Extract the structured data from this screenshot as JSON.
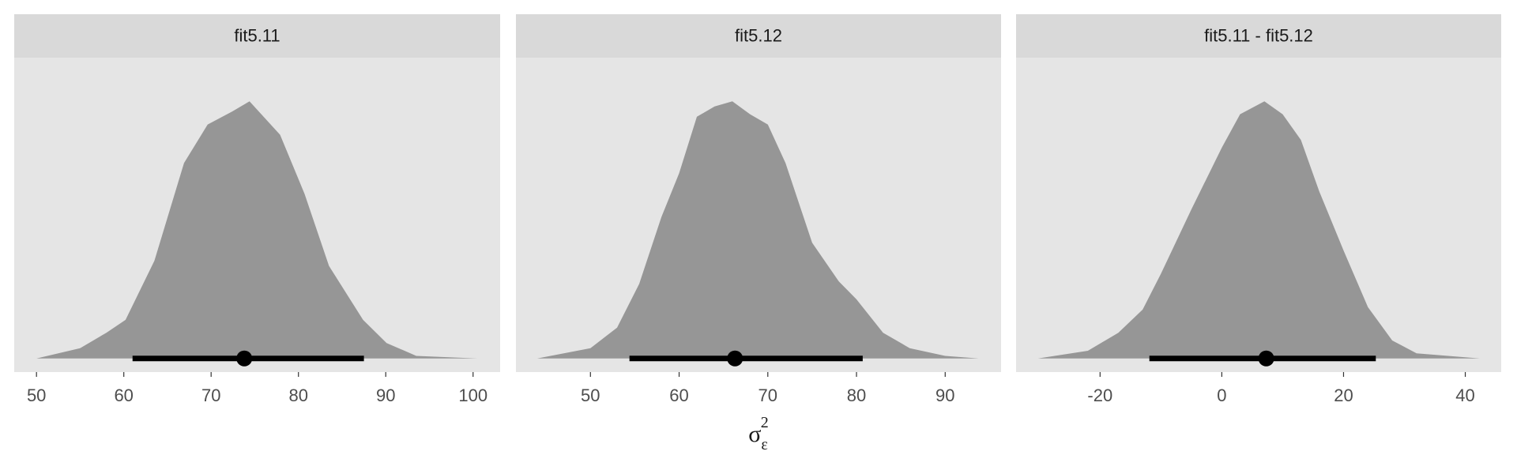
{
  "chart_data": [
    {
      "type": "density",
      "title": "fit5.11",
      "color": "#969696",
      "x": [
        50,
        55,
        58,
        60.2,
        63.5,
        66.9,
        69.6,
        72.4,
        74.4,
        77.9,
        80.7,
        83.5,
        87.4,
        90.1,
        93.5,
        100.5
      ],
      "density": [
        0,
        0.04,
        0.1,
        0.15,
        0.38,
        0.76,
        0.91,
        0.96,
        1,
        0.87,
        0.64,
        0.36,
        0.15,
        0.06,
        0.01,
        0
      ],
      "interval": [
        61,
        87.5
      ],
      "point": 73.8,
      "xlim": [
        47.45,
        103.1
      ],
      "ylim": [
        -0.053,
        1.17
      ],
      "xticks": [
        50,
        60,
        70,
        80,
        90,
        100
      ]
    },
    {
      "type": "density",
      "title": "fit5.12",
      "color": "#969696",
      "x": [
        44,
        50,
        53,
        55.5,
        58,
        60,
        62,
        64,
        66,
        68,
        70,
        72,
        75,
        78,
        80,
        83,
        86,
        90,
        93.8
      ],
      "density": [
        0,
        0.04,
        0.12,
        0.29,
        0.55,
        0.72,
        0.94,
        0.98,
        1,
        0.95,
        0.91,
        0.76,
        0.45,
        0.3,
        0.23,
        0.1,
        0.04,
        0.01,
        0
      ],
      "interval": [
        54.4,
        80.7
      ],
      "point": 66.3,
      "xlim": [
        41.6,
        96.3
      ],
      "ylim": [
        -0.053,
        1.17
      ],
      "xticks": [
        50,
        60,
        70,
        80,
        90
      ]
    },
    {
      "type": "density",
      "title": "fit5.11 - fit5.12",
      "color": "#969696",
      "x": [
        -30.2,
        -22,
        -17,
        -13,
        -10,
        -5,
        0,
        3,
        7,
        10,
        13,
        16,
        20,
        24,
        28,
        32,
        42.4
      ],
      "density": [
        0,
        0.03,
        0.1,
        0.19,
        0.33,
        0.58,
        0.82,
        0.95,
        1,
        0.95,
        0.85,
        0.65,
        0.42,
        0.2,
        0.07,
        0.02,
        0
      ],
      "interval": [
        -11.9,
        25.3
      ],
      "point": 7.3,
      "xlim": [
        -33.8,
        45.9
      ],
      "ylim": [
        -0.053,
        1.17
      ],
      "xticks": [
        -20,
        0,
        20,
        40
      ]
    }
  ],
  "x_label": {
    "base": "σ",
    "sub": "ε",
    "sup": "2"
  }
}
